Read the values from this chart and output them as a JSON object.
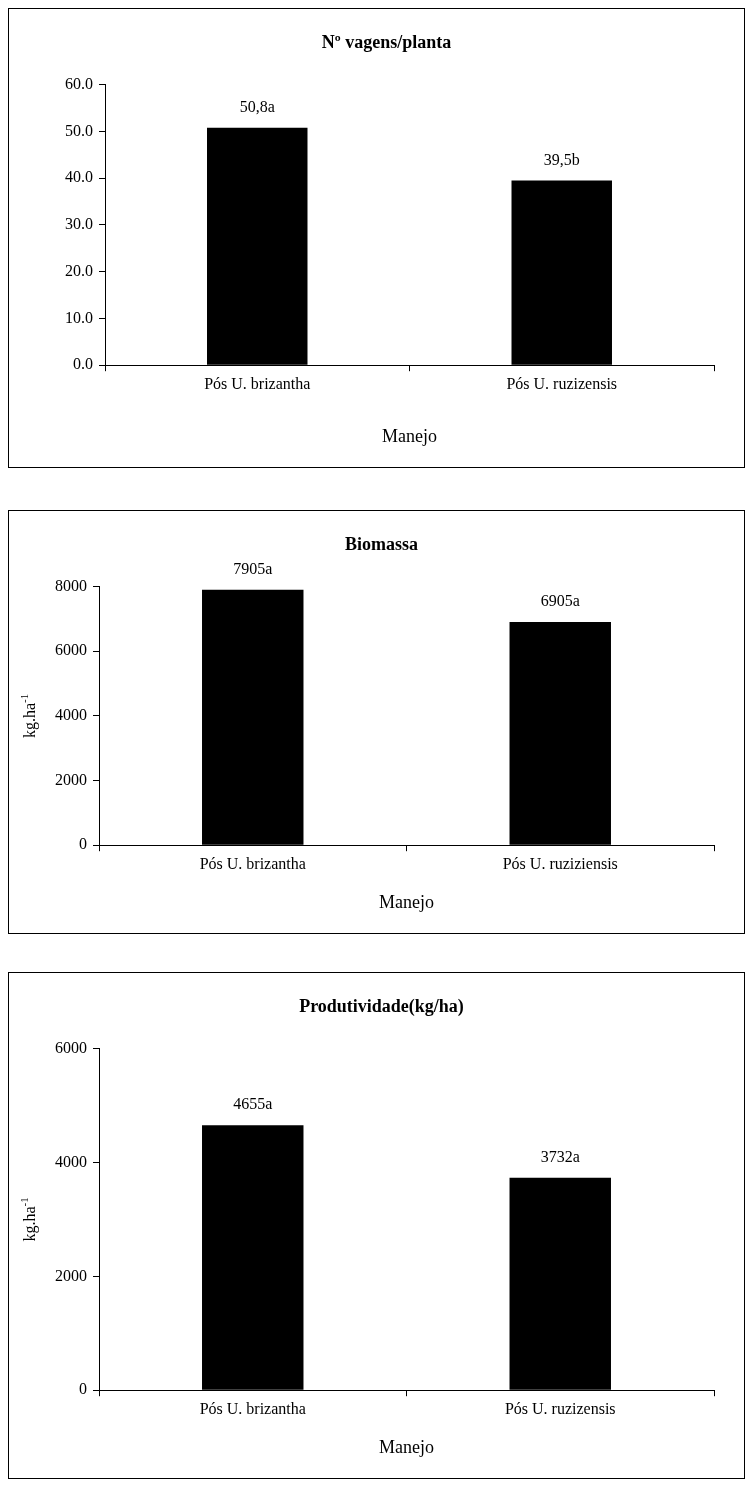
{
  "chart_data": [
    {
      "type": "bar",
      "title": "Nº vagens/planta",
      "xlabel": "Manejo",
      "categories": [
        "Pós U. brizantha",
        "Pós U. ruzizensis"
      ],
      "values": [
        50.8,
        39.5
      ],
      "value_labels": [
        "50,8a",
        "39,5b"
      ],
      "color": "#000000",
      "ylim": [
        0,
        60
      ],
      "yticks": [
        {
          "value": 0,
          "label": "0.0"
        },
        {
          "value": 10,
          "label": "10.0"
        },
        {
          "value": 20,
          "label": "20.0"
        },
        {
          "value": 30,
          "label": "30.0"
        },
        {
          "value": 40,
          "label": "40.0"
        },
        {
          "value": 50,
          "label": "50.0"
        },
        {
          "value": 60,
          "label": "60.0"
        }
      ],
      "grid": false,
      "legend": false
    },
    {
      "type": "bar",
      "title": "Biomassa",
      "xlabel": "Manejo",
      "ylabel": "kg.ha$^{-1}$",
      "categories": [
        "Pós U. brizantha",
        "Pós U. ruziziensis"
      ],
      "values": [
        7905,
        6905
      ],
      "value_labels": [
        "7905a",
        "6905a"
      ],
      "color": "#000000",
      "ylim": [
        0,
        8000
      ],
      "yticks": [
        0,
        2000,
        4000,
        6000,
        8000
      ],
      "grid": false,
      "legend": false
    },
    {
      "type": "bar",
      "title": "Produtividade(kg/ha)",
      "xlabel": "Manejo",
      "ylabel": "kg.ha$^{-1}$",
      "categories": [
        "Pós U. brizantha",
        "Pós U. ruzizensis"
      ],
      "values": [
        4655,
        3732
      ],
      "value_labels": [
        "4655a",
        "3732a"
      ],
      "color": "#000000",
      "ylim": [
        0,
        6000
      ],
      "yticks": [
        0,
        2000,
        4000,
        6000
      ],
      "grid": false,
      "legend": false
    }
  ]
}
